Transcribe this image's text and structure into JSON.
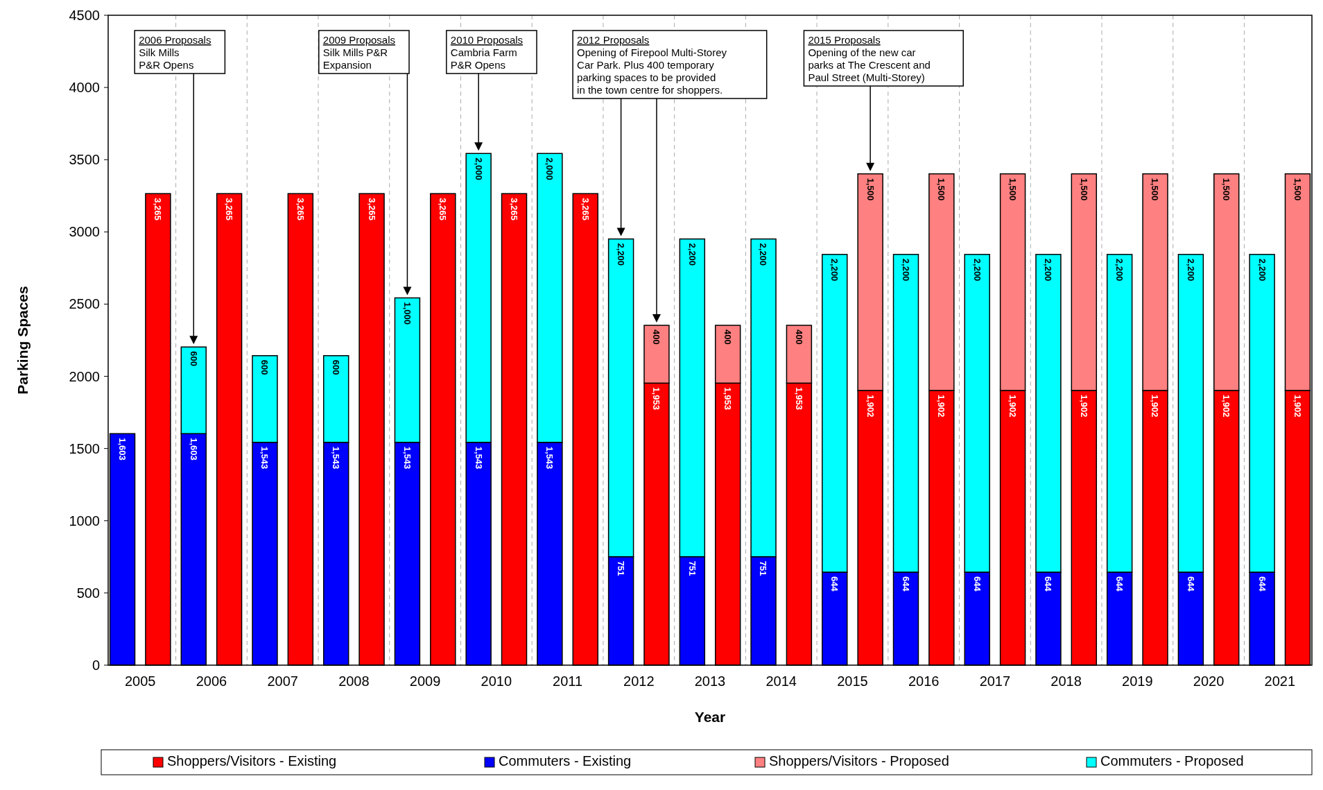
{
  "chart_data": {
    "type": "bar",
    "stacked": true,
    "xlabel": "Year",
    "ylabel": "Parking Spaces",
    "categories": [
      "2005",
      null,
      "2006",
      null,
      "2007",
      null,
      "2008",
      null,
      "2009",
      null,
      "2010",
      null,
      "2011",
      null,
      "2012",
      null,
      "2013",
      null,
      "2014",
      null,
      "2015",
      null,
      "2016",
      null,
      "2017",
      null,
      "2018",
      null,
      "2019",
      null,
      "2020",
      null,
      "2021",
      null
    ],
    "series": [
      {
        "name": "Shoppers/Visitors - Existing",
        "color": "#ff0000",
        "values": [
          null,
          3265,
          null,
          3265,
          null,
          3265,
          null,
          3265,
          null,
          3265,
          null,
          3265,
          null,
          3265,
          null,
          1953,
          null,
          1953,
          null,
          1953,
          null,
          1902,
          null,
          1902,
          null,
          1902,
          null,
          1902,
          null,
          1902,
          null,
          1902,
          null,
          1902
        ],
        "value_labels": [
          null,
          "3,265",
          null,
          "3,265",
          null,
          "3,265",
          null,
          "3,265",
          null,
          "3,265",
          null,
          "3,265",
          null,
          "3,265",
          null,
          "1,953",
          null,
          "1,953",
          null,
          "1,953",
          null,
          "1,902",
          null,
          "1,902",
          null,
          "1,902",
          null,
          "1,902",
          null,
          "1,902",
          null,
          "1,902",
          null,
          "1,902"
        ]
      },
      {
        "name": "Commuters - Existing",
        "color": "#0000ff",
        "values": [
          1603,
          null,
          1603,
          null,
          1543,
          null,
          1543,
          null,
          1543,
          null,
          1543,
          null,
          1543,
          null,
          751,
          null,
          751,
          null,
          751,
          null,
          644,
          null,
          644,
          null,
          644,
          null,
          644,
          null,
          644,
          null,
          644,
          null,
          644,
          null
        ],
        "value_labels": [
          "1,603",
          null,
          "1,603",
          null,
          "1,543",
          null,
          "1,543",
          null,
          "1,543",
          null,
          "1,543",
          null,
          "1,543",
          null,
          "751",
          null,
          "751",
          null,
          "751",
          null,
          "644",
          null,
          "644",
          null,
          "644",
          null,
          "644",
          null,
          "644",
          null,
          "644",
          null,
          "644",
          null
        ]
      },
      {
        "name": "Shoppers/Visitors - Proposed",
        "color": "#ff8080",
        "values": [
          null,
          null,
          null,
          null,
          null,
          null,
          null,
          null,
          null,
          null,
          null,
          null,
          null,
          null,
          null,
          400,
          null,
          400,
          null,
          400,
          null,
          1500,
          null,
          1500,
          null,
          1500,
          null,
          1500,
          null,
          1500,
          null,
          1500,
          null,
          1500
        ],
        "value_labels": [
          null,
          null,
          null,
          null,
          null,
          null,
          null,
          null,
          null,
          null,
          null,
          null,
          null,
          null,
          null,
          "400",
          null,
          "400",
          null,
          "400",
          null,
          "1,500",
          null,
          "1,500",
          null,
          "1,500",
          null,
          "1,500",
          null,
          "1,500",
          null,
          "1,500",
          null,
          "1,500"
        ]
      },
      {
        "name": "Commuters - Proposed",
        "color": "#00ffff",
        "values": [
          null,
          null,
          600,
          null,
          600,
          null,
          600,
          null,
          1000,
          null,
          2000,
          null,
          2000,
          null,
          2200,
          null,
          2200,
          null,
          2200,
          null,
          2200,
          null,
          2200,
          null,
          2200,
          null,
          2200,
          null,
          2200,
          null,
          2200,
          null,
          2200,
          null
        ],
        "value_labels": [
          null,
          null,
          "600",
          null,
          "600",
          null,
          "600",
          null,
          "1,000",
          null,
          "2,000",
          null,
          "2,000",
          null,
          "2,200",
          null,
          "2,200",
          null,
          "2,200",
          null,
          "2,200",
          null,
          "2,200",
          null,
          "2,200",
          null,
          "2,200",
          null,
          "2,200",
          null,
          "2,200",
          null,
          "2,200",
          null
        ]
      }
    ],
    "ylim": [
      0,
      4500
    ],
    "yticks": [
      0,
      500,
      1000,
      1500,
      2000,
      2500,
      3000,
      3500,
      4000,
      4500
    ],
    "grid": "x",
    "legend": "bottom",
    "annotations": [
      "2006 Proposals\nSilk Mills\nP&R Opens",
      "2009 Proposals\nSilk Mills P&R\nExpansion",
      "2010 Proposals\nCambria Farm\nP&R Opens",
      "2012 Proposals\nOpening of Firepool Multi-Storey\nCar Park.  Plus 400 temporary\nparking spaces to be provided\nin the town centre for shoppers.",
      "2015 Proposals\nOpening of the new car\nparks at The Crescent and\nPaul Street (Multi-Storey)"
    ]
  }
}
